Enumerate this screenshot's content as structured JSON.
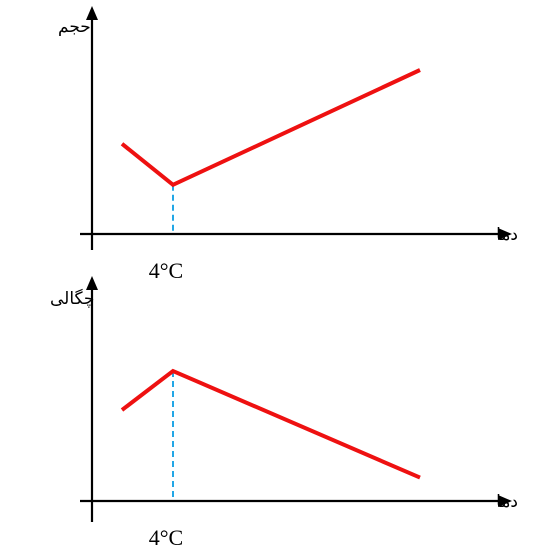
{
  "chart_data": [
    {
      "type": "line",
      "ylabel": "حجم",
      "xlabel": "دما",
      "marked_x": "4°C",
      "series": [
        {
          "values": [
            {
              "x": 0,
              "y": 0.55
            },
            {
              "x": 4,
              "y": 0.3
            },
            {
              "x": 20,
              "y": 1.0
            }
          ]
        }
      ],
      "colors": {
        "series": "#ee1111",
        "guide": "#22a7e6"
      }
    },
    {
      "type": "line",
      "ylabel": "چگالی",
      "xlabel": "دما",
      "marked_x": "4°C",
      "series": [
        {
          "values": [
            {
              "x": 0,
              "y": 0.7
            },
            {
              "x": 4,
              "y": 1.0
            },
            {
              "x": 20,
              "y": 0.18
            }
          ]
        }
      ],
      "colors": {
        "series": "#ee1111",
        "guide": "#22a7e6"
      }
    }
  ]
}
